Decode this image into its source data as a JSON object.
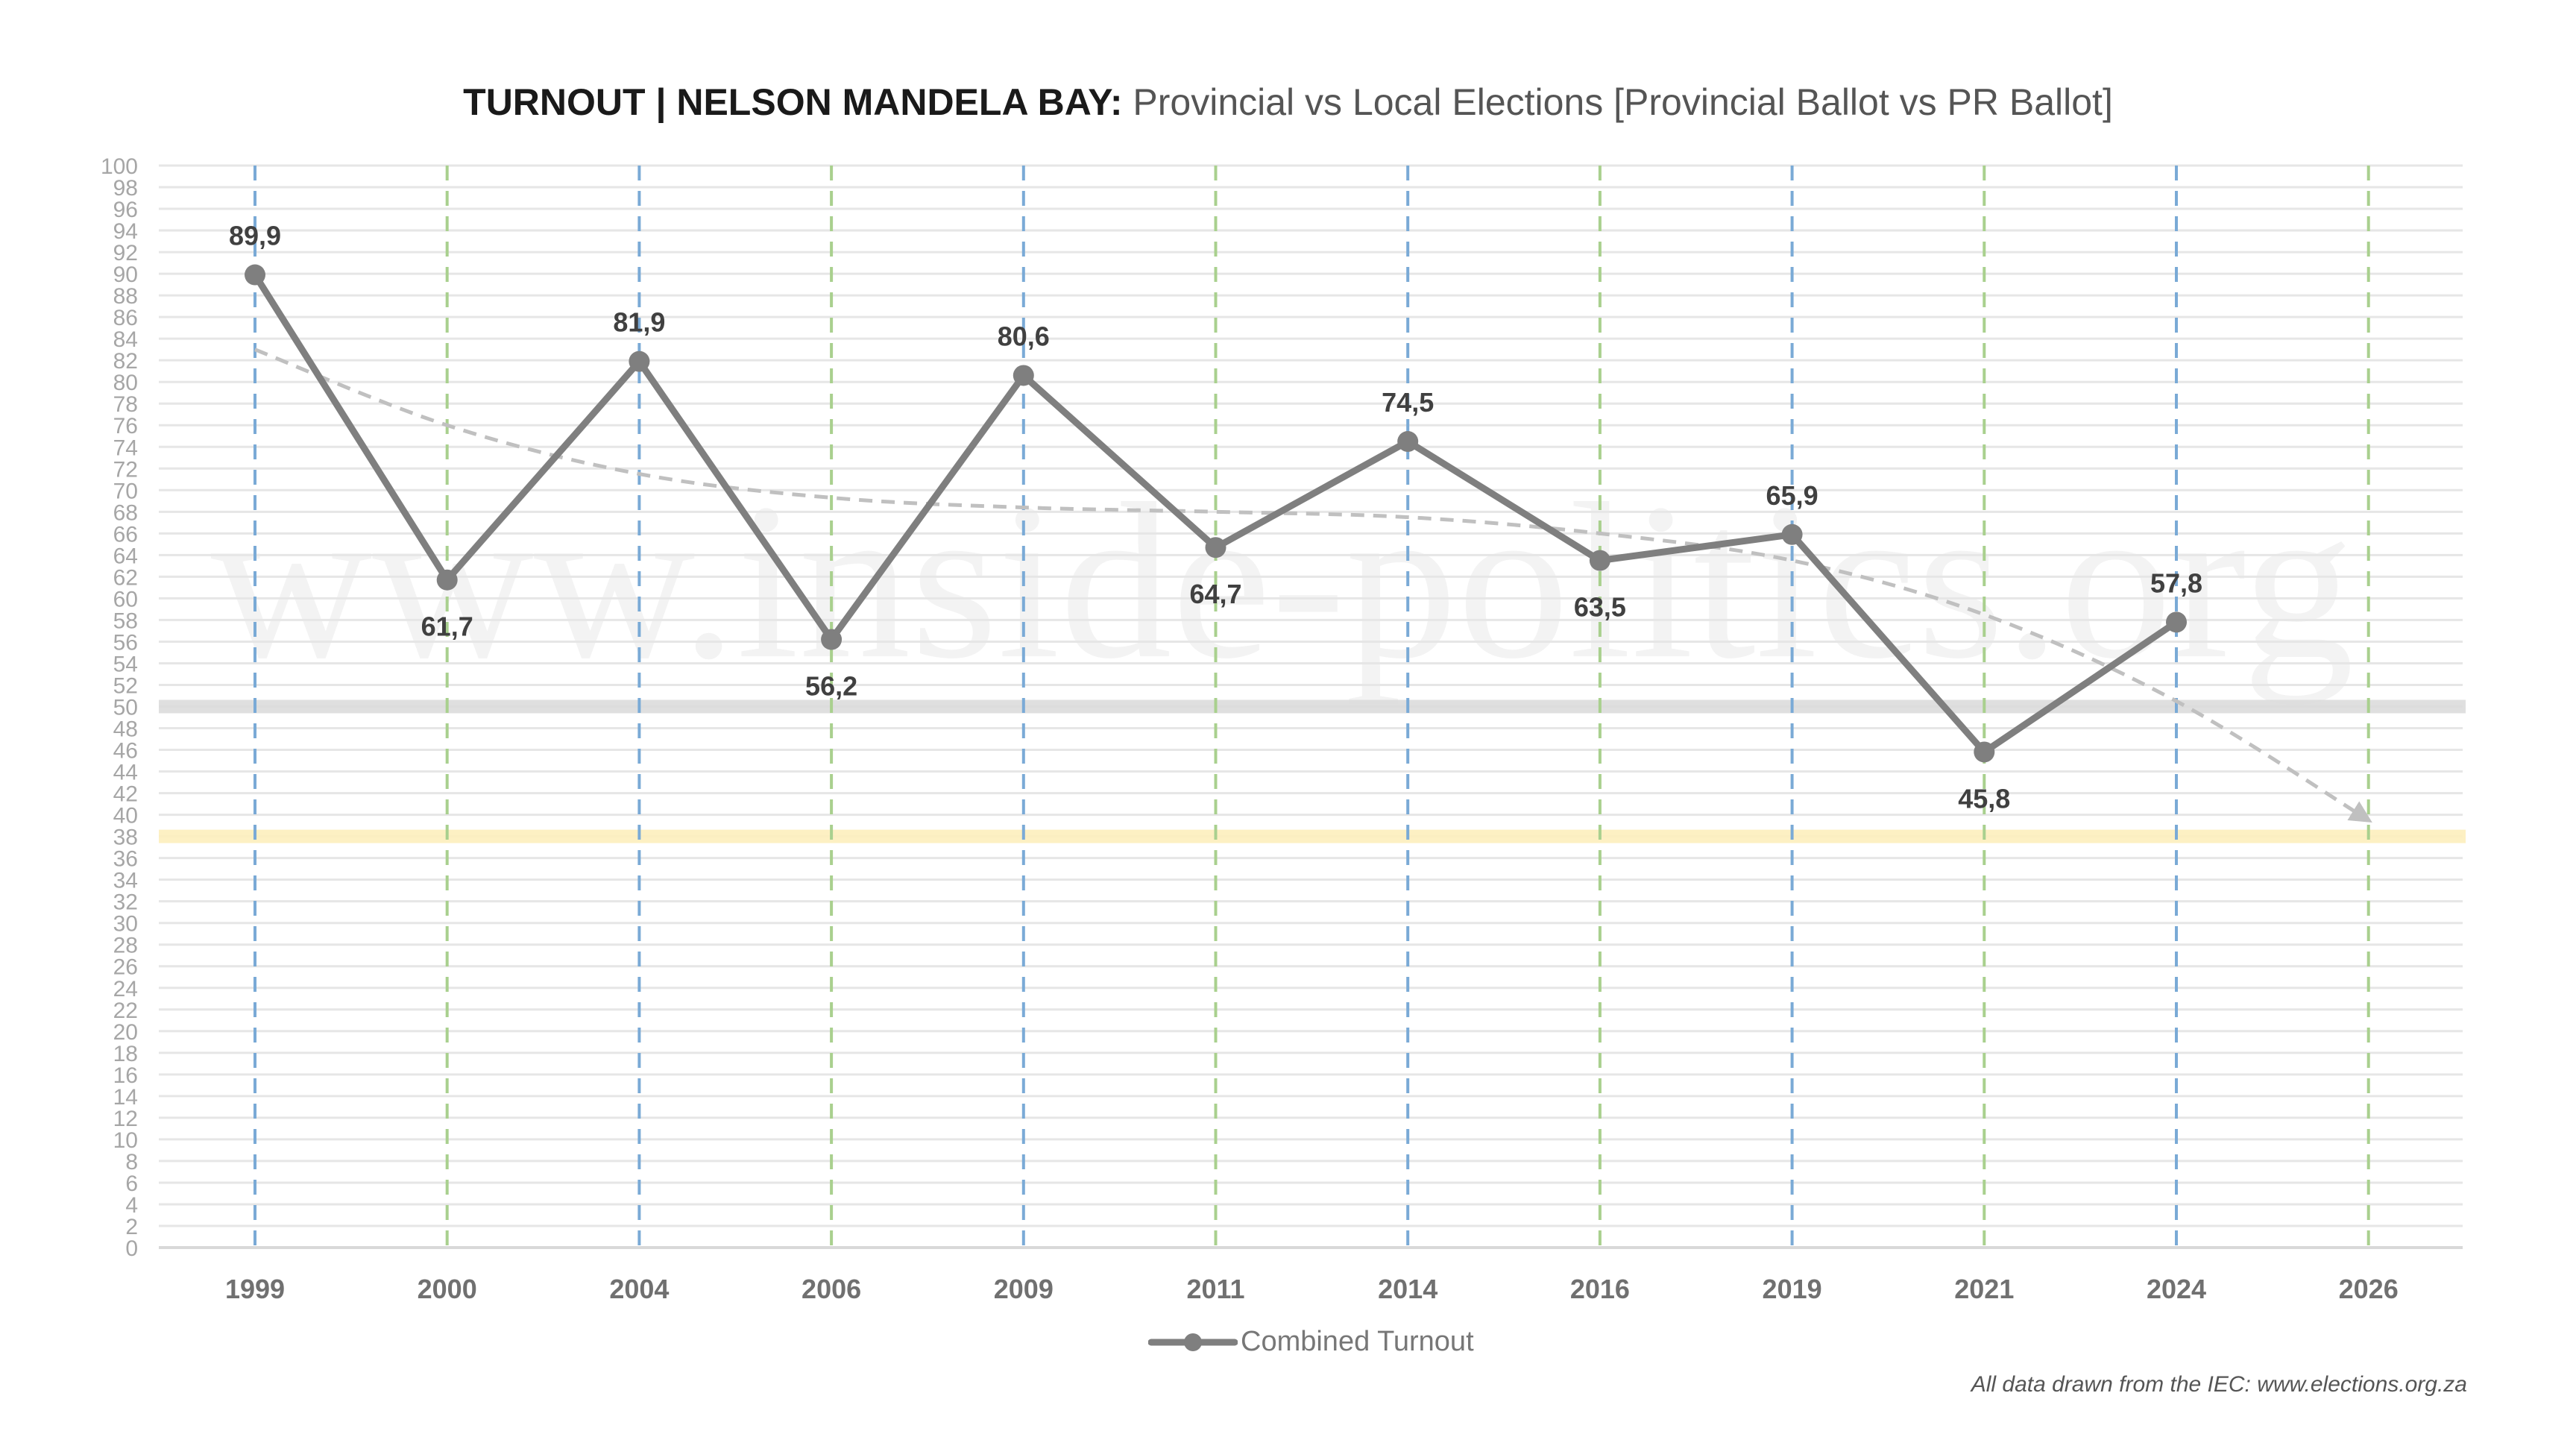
{
  "title": {
    "bold": "TURNOUT | NELSON MANDELA BAY:",
    "rest": " Provincial vs Local Elections [Provincial Ballot vs PR Ballot]"
  },
  "watermark": "www.inside-politics.org",
  "legend": {
    "label": "Combined Turnout",
    "icon": "line-with-marker-icon"
  },
  "source": "All data drawn from the IEC: www.elections.org.za",
  "colors": {
    "series": "#7f7f7f",
    "label": "#404040",
    "provincial_guide": "#7aaad6",
    "local_guide": "#a9d08e",
    "gridline": "#e6e6e6",
    "band_50": "#d9d9d9",
    "band_38": "#fdeebc",
    "trend": "#c0c0c0"
  },
  "chart_data": {
    "type": "line",
    "title": "TURNOUT | NELSON MANDELA BAY: Provincial vs Local Elections [Provincial Ballot vs PR Ballot]",
    "xlabel": "",
    "ylabel": "",
    "categories": [
      "1999",
      "2000",
      "2004",
      "2006",
      "2009",
      "2011",
      "2014",
      "2016",
      "2019",
      "2021",
      "2024",
      "2026"
    ],
    "category_types": [
      "provincial",
      "local",
      "provincial",
      "local",
      "provincial",
      "local",
      "provincial",
      "local",
      "provincial",
      "local",
      "provincial",
      "local"
    ],
    "series": [
      {
        "name": "Combined Turnout",
        "values": [
          89.9,
          61.7,
          81.9,
          56.2,
          80.6,
          64.7,
          74.5,
          63.5,
          65.9,
          45.8,
          57.8,
          null
        ],
        "labels": [
          "89,9",
          "61,7",
          "81,9",
          "56,2",
          "80,6",
          "64,7",
          "74,5",
          "63,5",
          "65,9",
          "45,8",
          "57,8",
          ""
        ],
        "label_positions": [
          "above",
          "below",
          "above",
          "below",
          "above",
          "below",
          "above",
          "below",
          "above",
          "below",
          "above",
          ""
        ]
      }
    ],
    "trend_line": {
      "style": "dashed-arrow",
      "values": [
        83,
        76,
        71.5,
        69.3,
        68.4,
        68,
        67.5,
        66,
        63.5,
        58.5,
        50.5,
        39.5
      ]
    },
    "reference_bands": [
      {
        "value": 50,
        "color": "grey"
      },
      {
        "value": 38,
        "color": "yellow"
      }
    ],
    "ylim": [
      0,
      100
    ],
    "ytick_step": 2,
    "grid": true,
    "legend_position": "bottom"
  }
}
